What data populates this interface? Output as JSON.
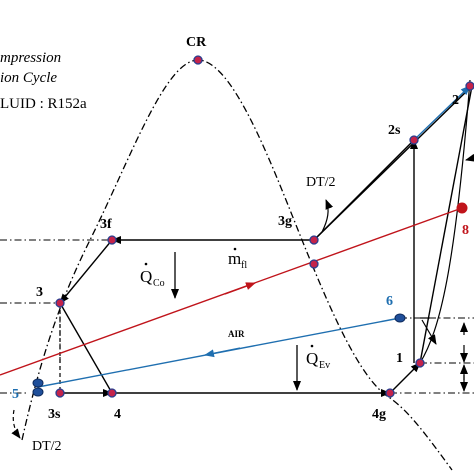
{
  "title": {
    "line1": "mpression",
    "line2": "ion Cycle",
    "fluid": "LUID : R152a"
  },
  "colors": {
    "line": "#000000",
    "point_fill": "#c4234a",
    "point_stroke": "#2a3e8f",
    "air": "#1f6fb0",
    "hot": "#c0141b"
  },
  "labels": {
    "cr": "CR",
    "p1": "1",
    "p2": "2",
    "p2s": "2s",
    "p3": "3",
    "p3f": "3f",
    "p3g": "3g",
    "p3s": "3s",
    "p4": "4",
    "p4g": "4g",
    "p5": "5",
    "p6": "6",
    "p8": "8",
    "dt_upper": "DT/2",
    "dt_lower": "DT/2",
    "air": "AIR",
    "q_co": "Q",
    "q_co_sub": "Co",
    "q_ev": "Q",
    "q_ev_sub": "Ev",
    "m_fl": "m",
    "m_fl_sub": "fl"
  }
}
